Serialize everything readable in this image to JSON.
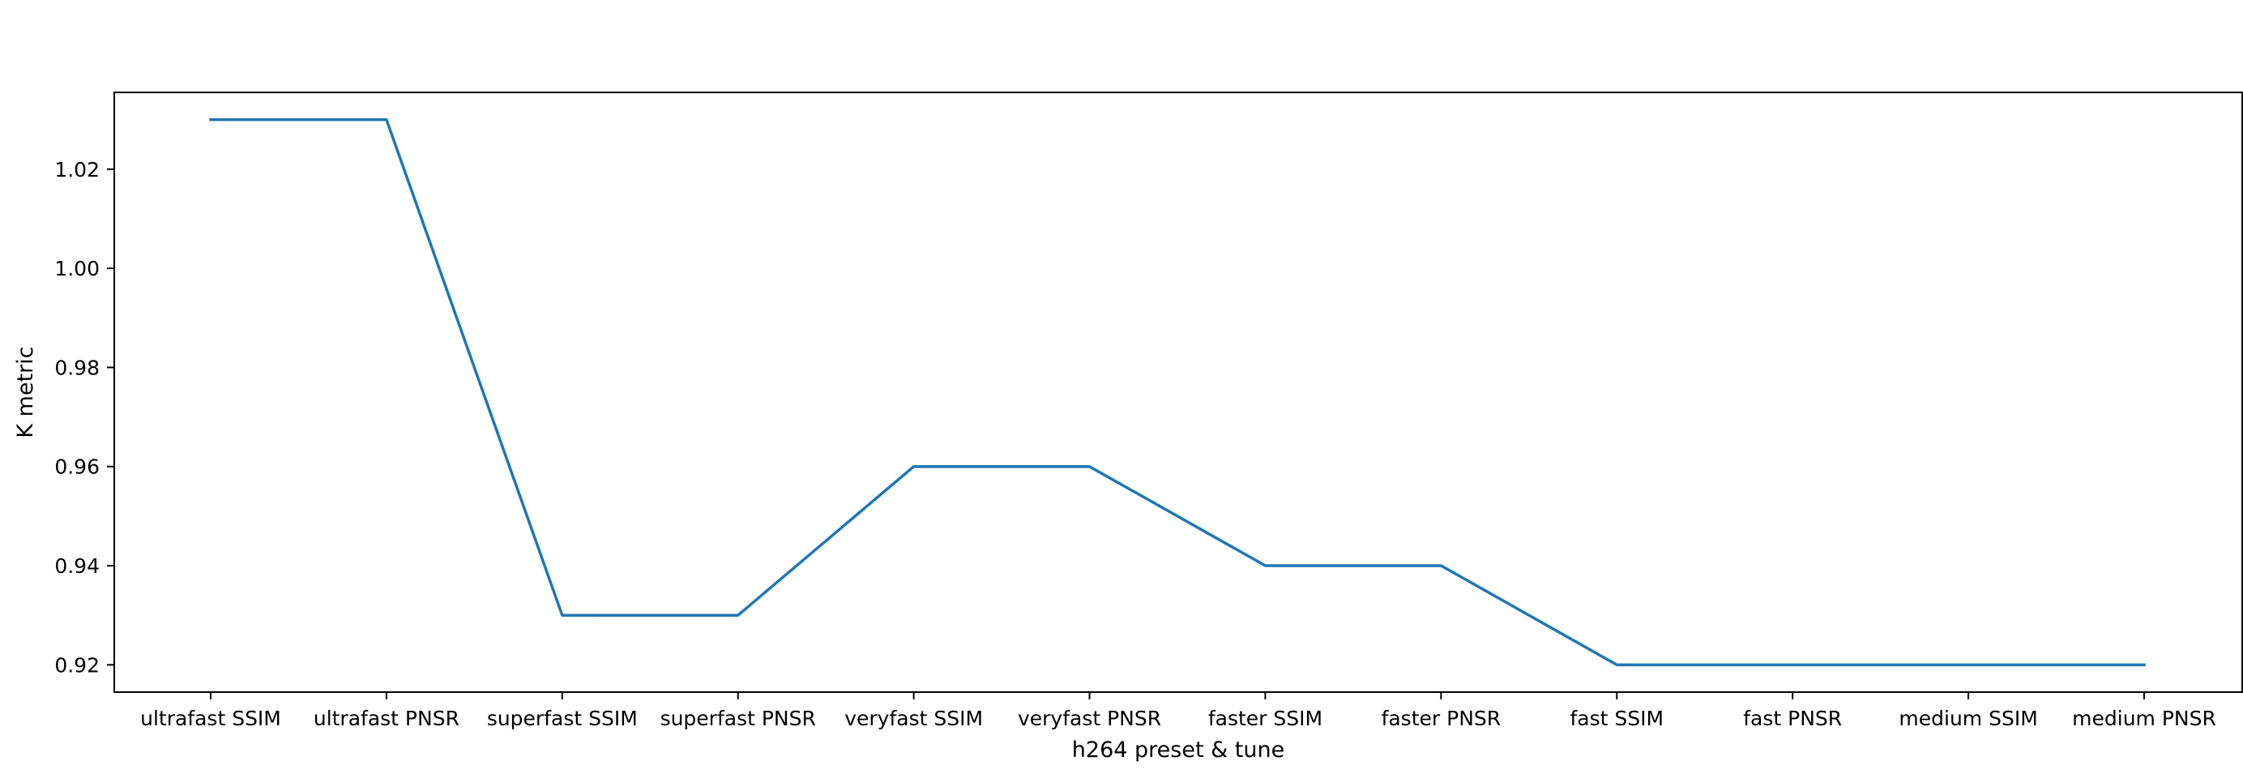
{
  "chart_data": {
    "type": "line",
    "title": "",
    "xlabel": "h264 preset & tune",
    "ylabel": "K metric",
    "categories": [
      "ultrafast SSIM",
      "ultrafast PNSR",
      "superfast SSIM",
      "superfast PNSR",
      "veryfast SSIM",
      "veryfast PNSR",
      "faster SSIM",
      "faster PNSR",
      "fast SSIM",
      "fast PNSR",
      "medium SSIM",
      "medium PNSR"
    ],
    "series": [
      {
        "values": [
          1.03,
          1.03,
          0.93,
          0.93,
          0.96,
          0.96,
          0.94,
          0.94,
          0.92,
          0.92,
          0.92,
          0.92
        ],
        "color": "#1f77b4"
      }
    ],
    "yticks": [
      "0.92",
      "0.94",
      "0.96",
      "0.98",
      "1.00",
      "1.02"
    ],
    "ylim": [
      0.9145,
      1.0355
    ],
    "grid": false,
    "legend": "none"
  }
}
